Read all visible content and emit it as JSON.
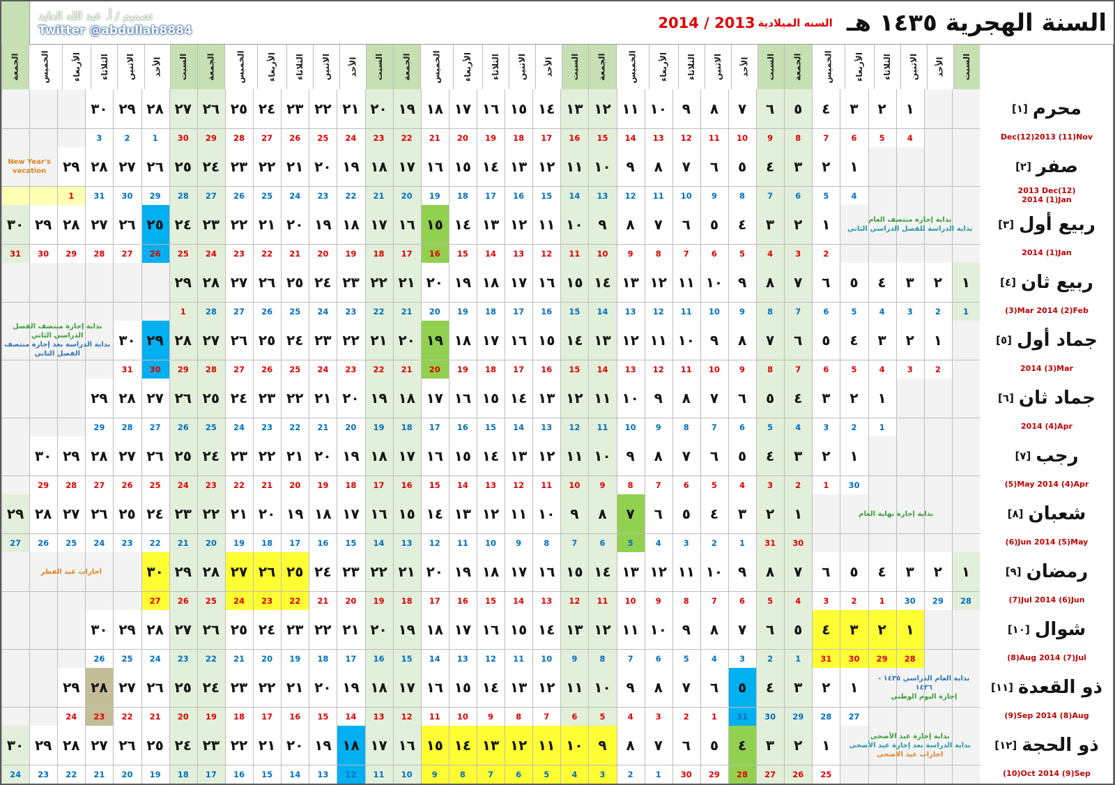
{
  "title": {
    "hijri_title": "السنة الهجرية ١٤٣٥ هـ",
    "gregorian_label": "السنه الميلادية",
    "gregorian_years": "2014 / 2013",
    "designer": "تصميم / أ. عبد الله العايد",
    "twitter": "Twitter @abdullah8884"
  },
  "weekdays": [
    "السبت",
    "الأحد",
    "الاثنين",
    "الثلاثاء",
    "الأربعاء",
    "الخميس",
    "الجمعة"
  ],
  "hijri_numerals": [
    "١",
    "٢",
    "٣",
    "٤",
    "٥",
    "٦",
    "٧",
    "٨",
    "٩",
    "١٠",
    "١١",
    "١٢",
    "١٣",
    "١٤",
    "١٥",
    "١٦",
    "١٧",
    "١٨",
    "١٩",
    "٢٠",
    "٢١",
    "٢٢",
    "٢٣",
    "٢٤",
    "٢٥",
    "٢٦",
    "٢٧",
    "٢٨",
    "٢٩",
    "٣٠"
  ],
  "colors": {
    "red": "#e00000",
    "blue": "#0070c0",
    "green": "#92d050",
    "hl_blue": "#00b0f0",
    "yellow": "#ffff33",
    "paleyellow": "#ffffb3",
    "tan": "#c4bd97",
    "ann_green": "#3a9e3a",
    "ann_blue": "#2e75b6",
    "teal": "#2797a4",
    "orange": "#e0841e",
    "weekend_header": "#c6e0b4",
    "weekend_cell": "#e2efda",
    "empty_cell": "#f3f3f3",
    "month_label_red": "#c00000"
  },
  "months": [
    {
      "name": "محرم",
      "index": "[١]",
      "glabel": [
        "Dec(12)2013 (11)Nov"
      ],
      "start": 3,
      "days": 30,
      "split": 27,
      "c1": "red",
      "c2": "blue",
      "greg": [
        "4",
        "5",
        "6",
        "7",
        "8",
        "9",
        "10",
        "11",
        "12",
        "13",
        "14",
        "15",
        "16",
        "17",
        "18",
        "19",
        "20",
        "21",
        "22",
        "23",
        "24",
        "25",
        "26",
        "27",
        "28",
        "29",
        "30",
        "1",
        "2",
        "3"
      ],
      "highlights": {},
      "annotations": null
    },
    {
      "name": "صفر",
      "index": "[٢]",
      "glabel": [
        "2013  Dec(12)",
        "2014  (1)Jan"
      ],
      "start": 5,
      "days": 29,
      "split": 28,
      "c1": "blue",
      "c2": "red",
      "greg": [
        "4",
        "5",
        "6",
        "7",
        "8",
        "9",
        "10",
        "11",
        "12",
        "13",
        "14",
        "15",
        "16",
        "17",
        "18",
        "19",
        "20",
        "21",
        "22",
        "23",
        "24",
        "25",
        "26",
        "27",
        "28",
        "29",
        "30",
        "31",
        "1"
      ],
      "highlights": {
        "paleyellow_greg": [
          29
        ]
      },
      "empty_left_greg_yellow": true,
      "annotations": {
        "side": "left",
        "lines": [
          {
            "text": "New Year's vacation",
            "color": "orange"
          }
        ]
      }
    },
    {
      "name": "ربيع أول",
      "index": "[٣]",
      "glabel": [
        "2014  (1)Jan"
      ],
      "start": 6,
      "days": 30,
      "split": 30,
      "c1": "red",
      "c2": "red",
      "greg": [
        "2",
        "3",
        "4",
        "5",
        "6",
        "7",
        "8",
        "9",
        "10",
        "11",
        "12",
        "13",
        "14",
        "15",
        "16",
        "17",
        "18",
        "19",
        "20",
        "21",
        "22",
        "23",
        "24",
        "25",
        "26",
        "27",
        "28",
        "29",
        "30",
        "31"
      ],
      "highlights": {
        "green": [
          15
        ],
        "hl_blue": [
          25
        ]
      },
      "annotations": {
        "side": "right",
        "lines": [
          {
            "text": "بداية إجازة منتصف العام",
            "color": "ann_green"
          },
          {
            "text": "بداية الدراسة للفصل الدراسي الثاني",
            "color": "teal"
          }
        ]
      }
    },
    {
      "name": "ربيع ثان",
      "index": "[٤]",
      "glabel": [
        "(3)Mar  2014  (2)Feb"
      ],
      "start": 1,
      "days": 29,
      "split": 28,
      "c1": "blue",
      "c2": "red",
      "greg": [
        "1",
        "2",
        "3",
        "4",
        "5",
        "6",
        "7",
        "8",
        "9",
        "10",
        "11",
        "12",
        "13",
        "14",
        "15",
        "16",
        "17",
        "18",
        "19",
        "20",
        "21",
        "22",
        "23",
        "24",
        "25",
        "26",
        "27",
        "28",
        "1"
      ],
      "highlights": {},
      "annotations": null
    },
    {
      "name": "جماد أول",
      "index": "[٥]",
      "glabel": [
        "2014  (3)Mar"
      ],
      "start": 2,
      "days": 30,
      "split": 30,
      "c1": "red",
      "c2": "red",
      "greg": [
        "2",
        "3",
        "4",
        "5",
        "6",
        "7",
        "8",
        "9",
        "10",
        "11",
        "12",
        "13",
        "14",
        "15",
        "16",
        "17",
        "18",
        "19",
        "20",
        "21",
        "22",
        "23",
        "24",
        "25",
        "26",
        "27",
        "28",
        "29",
        "30",
        "31"
      ],
      "highlights": {
        "green": [
          19
        ],
        "hl_blue": [
          29
        ]
      },
      "annotations": {
        "side": "left",
        "lines": [
          {
            "text": "بداية إجازة منتصف الفصل الدراسي الثاني",
            "color": "ann_green"
          },
          {
            "text": "بداية الدراسة بعد إجازة منتصف الفصل الثاني",
            "color": "ann_blue"
          }
        ]
      }
    },
    {
      "name": "جماد ثان",
      "index": "[٦]",
      "glabel": [
        "2014  (4)Apr"
      ],
      "start": 4,
      "days": 29,
      "split": 29,
      "c1": "blue",
      "c2": "blue",
      "greg": [
        "1",
        "2",
        "3",
        "4",
        "5",
        "6",
        "7",
        "8",
        "9",
        "10",
        "11",
        "12",
        "13",
        "14",
        "15",
        "16",
        "17",
        "18",
        "19",
        "20",
        "21",
        "22",
        "23",
        "24",
        "25",
        "26",
        "27",
        "28",
        "29"
      ],
      "highlights": {},
      "annotations": null
    },
    {
      "name": "رجب",
      "index": "[٧]",
      "glabel": [
        "(5)May 2014 (4)Apr"
      ],
      "start": 5,
      "days": 30,
      "split": 1,
      "c1": "blue",
      "c2": "red",
      "greg": [
        "30",
        "1",
        "2",
        "3",
        "4",
        "5",
        "6",
        "7",
        "8",
        "9",
        "10",
        "11",
        "12",
        "13",
        "14",
        "15",
        "16",
        "17",
        "18",
        "19",
        "20",
        "21",
        "22",
        "23",
        "24",
        "25",
        "26",
        "27",
        "28",
        "29"
      ],
      "highlights": {},
      "annotations": null
    },
    {
      "name": "شعبان",
      "index": "[٨]",
      "glabel": [
        "(6)Jun 2014 (5)May"
      ],
      "start": 7,
      "days": 29,
      "split": 2,
      "c1": "red",
      "c2": "blue",
      "greg": [
        "30",
        "31",
        "1",
        "2",
        "3",
        "4",
        "5",
        "6",
        "7",
        "8",
        "9",
        "10",
        "11",
        "12",
        "13",
        "14",
        "15",
        "16",
        "17",
        "18",
        "19",
        "20",
        "21",
        "22",
        "23",
        "24",
        "25",
        "26",
        "27"
      ],
      "highlights": {
        "green": [
          7
        ]
      },
      "annotations": {
        "side": "right",
        "lines": [
          {
            "text": "بداية إجازة نهاية العام",
            "color": "ann_green"
          }
        ]
      }
    },
    {
      "name": "رمضان",
      "index": "[٩]",
      "glabel": [
        "(7)Jul  2014 (6)Jun"
      ],
      "start": 1,
      "days": 30,
      "split": 3,
      "c1": "blue",
      "c2": "red",
      "greg": [
        "28",
        "29",
        "30",
        "1",
        "2",
        "3",
        "4",
        "5",
        "6",
        "7",
        "8",
        "9",
        "10",
        "11",
        "12",
        "13",
        "14",
        "15",
        "16",
        "17",
        "18",
        "19",
        "20",
        "21",
        "22",
        "23",
        "24",
        "25",
        "26",
        "27"
      ],
      "highlights": {
        "yellow": [
          25,
          26,
          27,
          30
        ]
      },
      "annotations": {
        "side": "left",
        "lines": [
          {
            "text": "اجازات عيد الفطر",
            "color": "orange"
          }
        ]
      }
    },
    {
      "name": "شوال",
      "index": "[١٠]",
      "glabel": [
        "(8)Aug  2014 (7)Jul"
      ],
      "start": 3,
      "days": 30,
      "split": 4,
      "c1": "red",
      "c2": "blue",
      "greg": [
        "28",
        "29",
        "30",
        "31",
        "1",
        "2",
        "3",
        "4",
        "5",
        "6",
        "7",
        "8",
        "9",
        "10",
        "11",
        "12",
        "13",
        "14",
        "15",
        "16",
        "17",
        "18",
        "19",
        "20",
        "21",
        "22",
        "23",
        "24",
        "25",
        "26"
      ],
      "highlights": {
        "yellow": [
          1,
          2,
          3,
          4
        ]
      },
      "annotations": null
    },
    {
      "name": "ذو القعدة",
      "index": "[١١]",
      "glabel": [
        "(9)Sep 2014 (8)Aug"
      ],
      "start": 5,
      "days": 29,
      "split": 5,
      "c1": "blue",
      "c2": "red",
      "greg": [
        "27",
        "28",
        "29",
        "30",
        "31",
        "1",
        "2",
        "3",
        "4",
        "5",
        "6",
        "7",
        "8",
        "9",
        "10",
        "11",
        "12",
        "13",
        "14",
        "15",
        "16",
        "17",
        "18",
        "19",
        "20",
        "21",
        "22",
        "23",
        "24"
      ],
      "highlights": {
        "hl_blue": [
          5
        ],
        "tan": [
          28
        ]
      },
      "annotations": {
        "side": "right",
        "lines": [
          {
            "text": "بداية العام الدراسي ١٤٣٥ - ١٤٣٦",
            "color": "ann_blue"
          },
          {
            "text": "إجازة اليوم الوطني",
            "color": "ann_green"
          }
        ]
      }
    },
    {
      "name": "ذو الحجة",
      "index": "[١٢]",
      "glabel": [
        "(10)Oct 2014 (9)Sep"
      ],
      "start": 6,
      "days": 30,
      "split": 6,
      "c1": "red",
      "c2": "blue",
      "greg": [
        "25",
        "26",
        "27",
        "28",
        "29",
        "30",
        "1",
        "2",
        "3",
        "4",
        "5",
        "6",
        "7",
        "8",
        "9",
        "10",
        "11",
        "12",
        "13",
        "14",
        "15",
        "16",
        "17",
        "18",
        "19",
        "20",
        "21",
        "22",
        "23",
        "24"
      ],
      "highlights": {
        "green": [
          4
        ],
        "yellow": [
          9,
          10,
          11,
          12,
          13,
          14,
          15
        ],
        "hl_blue": [
          18
        ]
      },
      "annotations": {
        "side": "right",
        "lines": [
          {
            "text": "بداية إجازة عيد الأضحى",
            "color": "ann_green"
          },
          {
            "text": "بداية الدراسة بعد إجازة عيد الأضحى",
            "color": "teal"
          },
          {
            "text": "اجازات عيد الاضحى",
            "color": "orange"
          }
        ]
      }
    }
  ]
}
